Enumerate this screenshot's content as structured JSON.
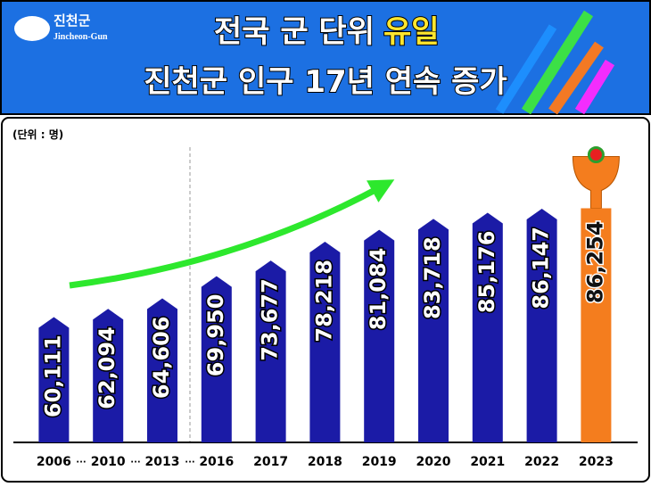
{
  "logo": {
    "name": "진천군",
    "name_en": "Jincheon-Gun"
  },
  "chart_data": {
    "type": "bar",
    "title": "전국 군 단위",
    "title_highlight": "유일",
    "subtitle": "진천군 인구 17년 연속 증가",
    "unit": "(단위 : 명)",
    "categories": [
      "2006",
      "2010",
      "2013",
      "2016",
      "2017",
      "2018",
      "2019",
      "2020",
      "2021",
      "2022",
      "2023"
    ],
    "values": [
      60111,
      62094,
      64606,
      69950,
      73677,
      78218,
      81084,
      83718,
      85176,
      86147,
      86254
    ],
    "value_labels": [
      "60,111",
      "62,094",
      "64,606",
      "69,950",
      "73,677",
      "78,218",
      "81,084",
      "83,718",
      "85,176",
      "86,147",
      "86,254"
    ],
    "color": "#1b1ba6",
    "highlight_color": "#f47d1e",
    "ylim": [
      30000,
      90000
    ]
  }
}
